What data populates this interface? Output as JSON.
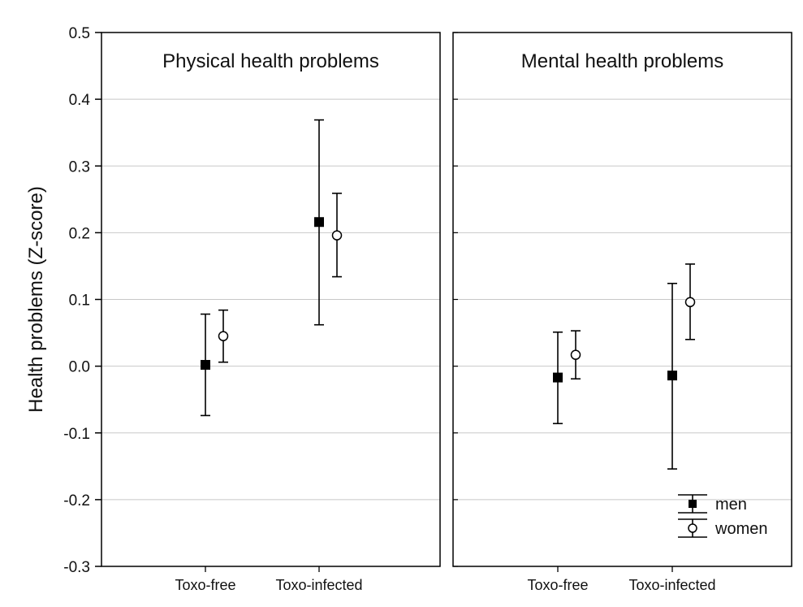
{
  "chart_data": {
    "type": "scatter",
    "ylabel": "Health problems (Z-score)",
    "ylim": [
      -0.3,
      0.5
    ],
    "yticks": [
      "0.5",
      "0.4",
      "0.3",
      "0.2",
      "0.1",
      "0.0",
      "-0.1",
      "-0.2",
      "-0.3"
    ],
    "ytick_values": [
      0.5,
      0.4,
      0.3,
      0.2,
      0.1,
      0.0,
      -0.1,
      -0.2,
      -0.3
    ],
    "grid": "horizontal",
    "categories": [
      "Toxo-free",
      "Toxo-infected"
    ],
    "legend": {
      "placement": "bottom-right of right panel",
      "entries": [
        {
          "label": "men",
          "marker": "filled-square"
        },
        {
          "label": "women",
          "marker": "open-circle"
        }
      ]
    },
    "panels": [
      {
        "title": "Physical health problems",
        "series": [
          {
            "name": "men",
            "marker": "filled-square",
            "points": [
              {
                "category": "Toxo-free",
                "mean": 0.002,
                "lower": -0.074,
                "upper": 0.078
              },
              {
                "category": "Toxo-infected",
                "mean": 0.216,
                "lower": 0.062,
                "upper": 0.369
              }
            ]
          },
          {
            "name": "women",
            "marker": "open-circle",
            "points": [
              {
                "category": "Toxo-free",
                "mean": 0.045,
                "lower": 0.006,
                "upper": 0.084
              },
              {
                "category": "Toxo-infected",
                "mean": 0.196,
                "lower": 0.134,
                "upper": 0.259
              }
            ]
          }
        ]
      },
      {
        "title": "Mental health problems",
        "series": [
          {
            "name": "men",
            "marker": "filled-square",
            "points": [
              {
                "category": "Toxo-free",
                "mean": -0.017,
                "lower": -0.086,
                "upper": 0.051
              },
              {
                "category": "Toxo-infected",
                "mean": -0.014,
                "lower": -0.154,
                "upper": 0.124
              }
            ]
          },
          {
            "name": "women",
            "marker": "open-circle",
            "points": [
              {
                "category": "Toxo-free",
                "mean": 0.017,
                "lower": -0.019,
                "upper": 0.053
              },
              {
                "category": "Toxo-infected",
                "mean": 0.096,
                "lower": 0.04,
                "upper": 0.153
              }
            ]
          }
        ]
      }
    ]
  }
}
